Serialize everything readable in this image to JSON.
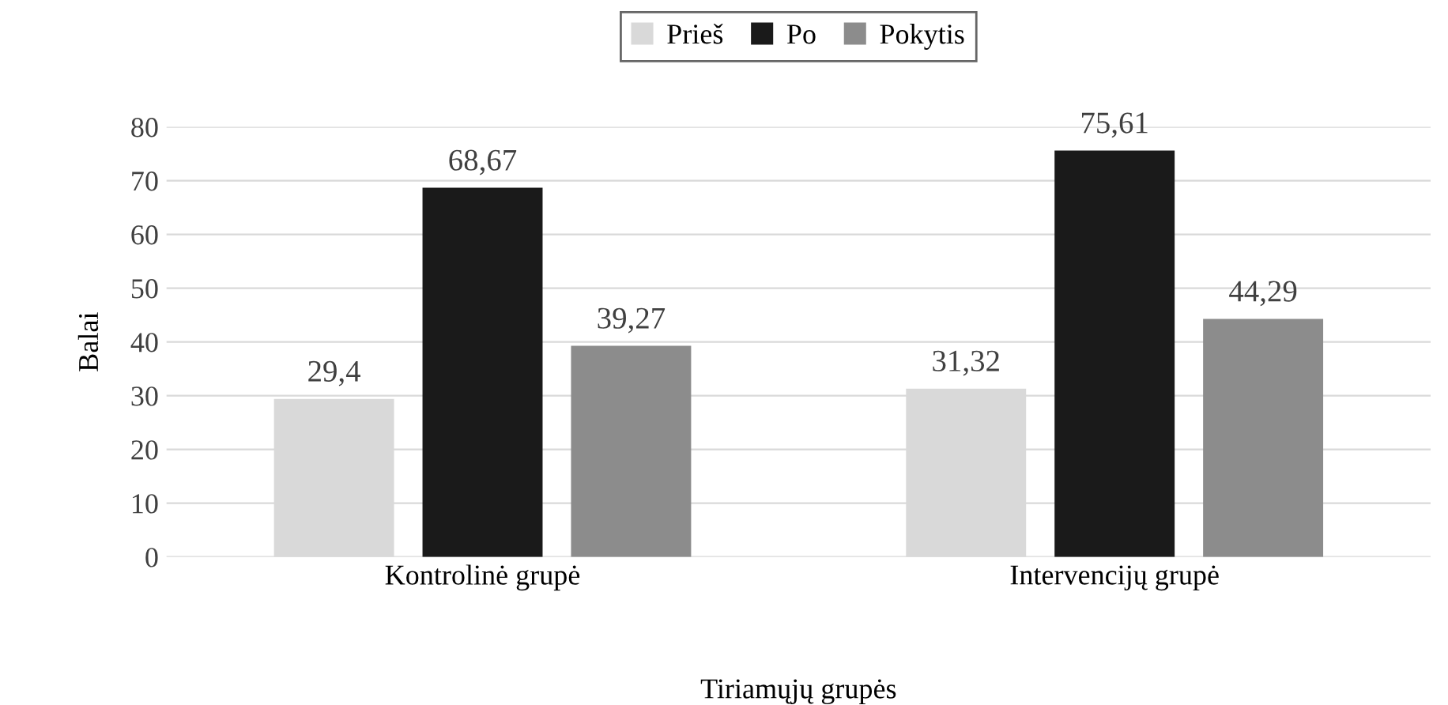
{
  "chart_data": {
    "type": "bar",
    "xlabel": "Tiriamųjų grupės",
    "ylabel": "Balai",
    "categories": [
      "Kontrolinė grupė",
      "Intervencijų grupė"
    ],
    "series": [
      {
        "name": "Prieš",
        "color": "#d9d9d9",
        "values": [
          29.4,
          31.32
        ],
        "value_labels": [
          "29,4",
          "31,32"
        ]
      },
      {
        "name": "Po",
        "color": "#1a1a1a",
        "values": [
          68.67,
          75.61
        ],
        "value_labels": [
          "68,67",
          "75,61"
        ]
      },
      {
        "name": "Pokytis",
        "color": "#8c8c8c",
        "values": [
          39.27,
          44.29
        ],
        "value_labels": [
          "39,27",
          "44,29"
        ]
      }
    ],
    "ylim": [
      0,
      80
    ],
    "yticks": [
      0,
      10,
      20,
      30,
      40,
      50,
      60,
      70,
      80
    ],
    "grid": "y",
    "legend": "top"
  }
}
